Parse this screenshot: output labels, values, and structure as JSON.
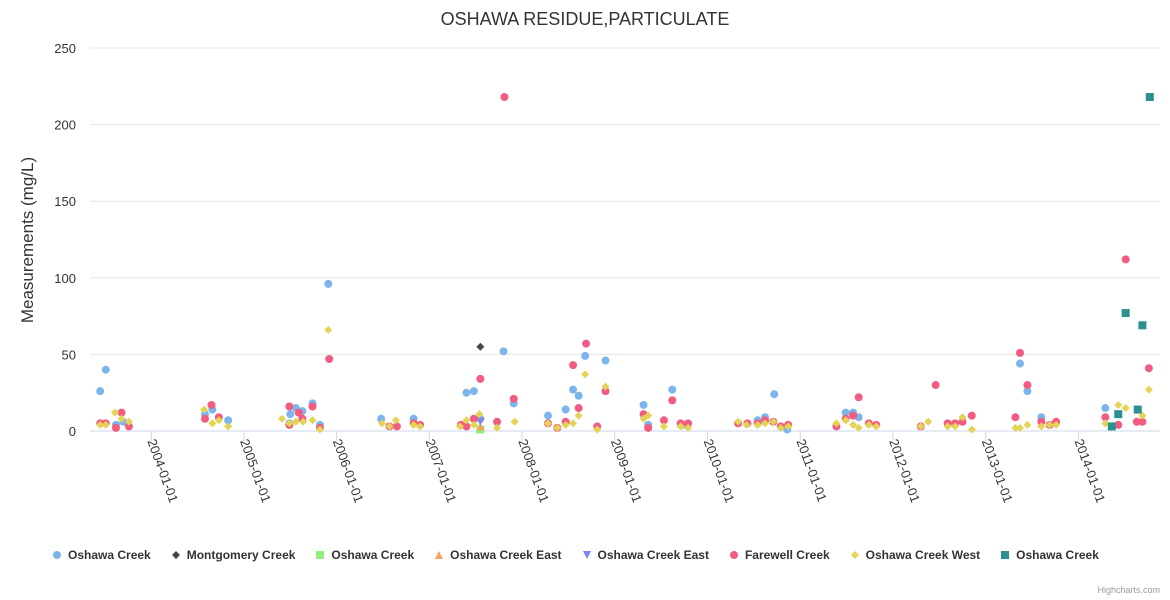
{
  "chart_data": {
    "type": "scatter",
    "title": "OSHAWA RESIDUE,PARTICULATE",
    "ylabel": "Measurements (mg/L)",
    "xlabel": "",
    "ylim": [
      0,
      250
    ],
    "xlim": [
      2003.34,
      2014.88
    ],
    "yticks": [
      "0",
      "50",
      "100",
      "150",
      "200",
      "250"
    ],
    "yticks_values": [
      0,
      50,
      100,
      150,
      200,
      250
    ],
    "xticks": [
      "2004-01-01",
      "2005-01-01",
      "2006-01-01",
      "2007-01-01",
      "2008-01-01",
      "2009-01-01",
      "2010-01-01",
      "2011-01-01",
      "2012-01-01",
      "2013-01-01",
      "2014-01-01"
    ],
    "xticks_values": [
      2004,
      2005,
      2006,
      2007,
      2008,
      2009,
      2010,
      2011,
      2012,
      2013,
      2014
    ],
    "grid": true,
    "legend_position": "bottom-left",
    "series": [
      {
        "name": "Oshawa Creek",
        "color": "#7cb5ec",
        "marker": "circle",
        "points": [
          [
            2003.45,
            26
          ],
          [
            2003.51,
            40
          ],
          [
            2003.62,
            4
          ],
          [
            2003.7,
            6
          ],
          [
            2004.58,
            11
          ],
          [
            2004.66,
            14
          ],
          [
            2004.83,
            7
          ],
          [
            2005.49,
            5
          ],
          [
            2005.5,
            11
          ],
          [
            2005.56,
            15
          ],
          [
            2005.63,
            13
          ],
          [
            2005.74,
            18
          ],
          [
            2005.82,
            4
          ],
          [
            2005.91,
            96
          ],
          [
            2006.48,
            8
          ],
          [
            2006.83,
            8
          ],
          [
            2007.4,
            25
          ],
          [
            2007.48,
            26
          ],
          [
            2007.55,
            8
          ],
          [
            2007.8,
            52
          ],
          [
            2007.91,
            18
          ],
          [
            2008.28,
            10
          ],
          [
            2008.47,
            14
          ],
          [
            2008.55,
            27
          ],
          [
            2008.61,
            23
          ],
          [
            2008.68,
            49
          ],
          [
            2008.9,
            46
          ],
          [
            2009.31,
            17
          ],
          [
            2009.36,
            4
          ],
          [
            2009.62,
            27
          ],
          [
            2009.73,
            4
          ],
          [
            2010.54,
            7
          ],
          [
            2010.62,
            9
          ],
          [
            2010.72,
            24
          ],
          [
            2010.86,
            1
          ],
          [
            2011.49,
            12
          ],
          [
            2011.57,
            12
          ],
          [
            2011.63,
            9
          ],
          [
            2013.37,
            44
          ],
          [
            2013.45,
            26
          ],
          [
            2013.6,
            9
          ],
          [
            2014.29,
            15
          ]
        ]
      },
      {
        "name": "Montgomery Creek",
        "color": "#434348",
        "marker": "diamond",
        "points": [
          [
            2007.55,
            55
          ]
        ]
      },
      {
        "name": "Oshawa Creek",
        "color": "#90ed7d",
        "marker": "square",
        "points": [
          [
            2007.55,
            1
          ]
        ]
      },
      {
        "name": "Oshawa Creek East",
        "color": "#f7a35c",
        "marker": "triangle",
        "points": [
          [
            2007.55,
            3
          ]
        ]
      },
      {
        "name": "Oshawa Creek East",
        "color": "#8085e9",
        "marker": "triangle-down",
        "points": [
          [
            2007.55,
            6
          ]
        ]
      },
      {
        "name": "Farewell Creek",
        "color": "#f15c80",
        "marker": "circle",
        "points": [
          [
            2003.45,
            5
          ],
          [
            2003.51,
            5
          ],
          [
            2003.62,
            2
          ],
          [
            2003.68,
            12
          ],
          [
            2003.76,
            3
          ],
          [
            2004.58,
            8
          ],
          [
            2004.65,
            17
          ],
          [
            2004.73,
            9
          ],
          [
            2005.49,
            4
          ],
          [
            2005.49,
            16
          ],
          [
            2005.59,
            12
          ],
          [
            2005.63,
            8
          ],
          [
            2005.74,
            16
          ],
          [
            2005.82,
            2
          ],
          [
            2005.92,
            47
          ],
          [
            2006.57,
            3
          ],
          [
            2006.65,
            3
          ],
          [
            2006.83,
            5
          ],
          [
            2006.9,
            4
          ],
          [
            2007.34,
            4
          ],
          [
            2007.4,
            3
          ],
          [
            2007.48,
            8
          ],
          [
            2007.55,
            34
          ],
          [
            2007.73,
            6
          ],
          [
            2007.81,
            218
          ],
          [
            2007.91,
            21
          ],
          [
            2008.28,
            5
          ],
          [
            2008.38,
            2
          ],
          [
            2008.47,
            6
          ],
          [
            2008.55,
            43
          ],
          [
            2008.61,
            15
          ],
          [
            2008.69,
            57
          ],
          [
            2008.81,
            3
          ],
          [
            2008.9,
            26
          ],
          [
            2009.31,
            11
          ],
          [
            2009.36,
            2
          ],
          [
            2009.53,
            7
          ],
          [
            2009.62,
            20
          ],
          [
            2009.71,
            5
          ],
          [
            2009.79,
            5
          ],
          [
            2010.33,
            5
          ],
          [
            2010.43,
            5
          ],
          [
            2010.54,
            5
          ],
          [
            2010.62,
            7
          ],
          [
            2010.71,
            6
          ],
          [
            2010.79,
            3
          ],
          [
            2010.87,
            4
          ],
          [
            2011.39,
            3
          ],
          [
            2011.49,
            8
          ],
          [
            2011.57,
            10
          ],
          [
            2011.63,
            22
          ],
          [
            2011.74,
            5
          ],
          [
            2011.82,
            4
          ],
          [
            2012.3,
            3
          ],
          [
            2012.46,
            30
          ],
          [
            2012.59,
            5
          ],
          [
            2012.67,
            5
          ],
          [
            2012.75,
            6
          ],
          [
            2012.85,
            10
          ],
          [
            2013.32,
            9
          ],
          [
            2013.37,
            51
          ],
          [
            2013.45,
            30
          ],
          [
            2013.6,
            6
          ],
          [
            2013.69,
            4
          ],
          [
            2013.76,
            6
          ],
          [
            2014.29,
            9
          ],
          [
            2014.43,
            4
          ],
          [
            2014.51,
            112
          ],
          [
            2014.63,
            6
          ],
          [
            2014.69,
            6
          ],
          [
            2014.76,
            41
          ]
        ]
      },
      {
        "name": "Oshawa Creek West",
        "color": "#e4d354",
        "marker": "diamond",
        "points": [
          [
            2003.45,
            4
          ],
          [
            2003.51,
            4
          ],
          [
            2003.61,
            12
          ],
          [
            2003.68,
            8
          ],
          [
            2003.76,
            6
          ],
          [
            2004.57,
            14
          ],
          [
            2004.66,
            5
          ],
          [
            2004.73,
            7
          ],
          [
            2004.83,
            3
          ],
          [
            2005.41,
            8
          ],
          [
            2005.49,
            5
          ],
          [
            2005.56,
            6
          ],
          [
            2005.64,
            6
          ],
          [
            2005.74,
            7
          ],
          [
            2005.82,
            1
          ],
          [
            2005.91,
            66
          ],
          [
            2006.49,
            5
          ],
          [
            2006.57,
            3
          ],
          [
            2006.64,
            7
          ],
          [
            2006.83,
            4
          ],
          [
            2006.9,
            3
          ],
          [
            2007.33,
            3
          ],
          [
            2007.4,
            7
          ],
          [
            2007.48,
            4
          ],
          [
            2007.54,
            11
          ],
          [
            2007.73,
            2
          ],
          [
            2007.92,
            6
          ],
          [
            2008.28,
            5
          ],
          [
            2008.38,
            2
          ],
          [
            2008.47,
            4
          ],
          [
            2008.55,
            5
          ],
          [
            2008.61,
            10
          ],
          [
            2008.68,
            37
          ],
          [
            2008.81,
            1
          ],
          [
            2008.9,
            29
          ],
          [
            2009.31,
            8
          ],
          [
            2009.36,
            10
          ],
          [
            2009.53,
            3
          ],
          [
            2009.71,
            3
          ],
          [
            2009.79,
            2
          ],
          [
            2010.33,
            6
          ],
          [
            2010.42,
            4
          ],
          [
            2010.54,
            4
          ],
          [
            2010.62,
            5
          ],
          [
            2010.71,
            6
          ],
          [
            2010.79,
            2
          ],
          [
            2010.87,
            3
          ],
          [
            2011.39,
            5
          ],
          [
            2011.49,
            7
          ],
          [
            2011.57,
            4
          ],
          [
            2011.63,
            2
          ],
          [
            2011.74,
            4
          ],
          [
            2011.82,
            3
          ],
          [
            2012.3,
            3
          ],
          [
            2012.38,
            6
          ],
          [
            2012.59,
            3
          ],
          [
            2012.67,
            3
          ],
          [
            2012.75,
            9
          ],
          [
            2012.85,
            1
          ],
          [
            2013.32,
            2
          ],
          [
            2013.37,
            2
          ],
          [
            2013.45,
            4
          ],
          [
            2013.6,
            3
          ],
          [
            2013.69,
            4
          ],
          [
            2013.76,
            4
          ],
          [
            2014.29,
            5
          ],
          [
            2014.43,
            17
          ],
          [
            2014.51,
            15
          ],
          [
            2014.69,
            10
          ],
          [
            2014.76,
            27
          ]
        ]
      },
      {
        "name": "Oshawa Creek",
        "color": "#2b908f",
        "marker": "square",
        "points": [
          [
            2014.36,
            3
          ],
          [
            2014.43,
            11
          ],
          [
            2014.51,
            77
          ],
          [
            2014.64,
            14
          ],
          [
            2014.69,
            69
          ],
          [
            2014.77,
            218
          ]
        ]
      }
    ]
  },
  "credits": "Highcharts.com"
}
